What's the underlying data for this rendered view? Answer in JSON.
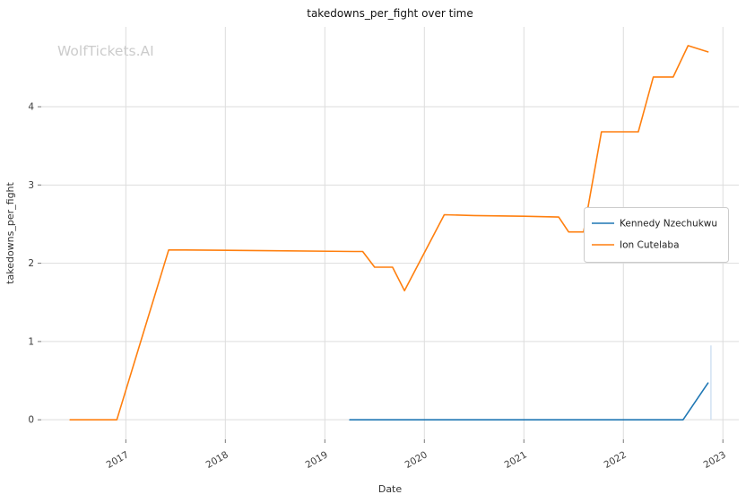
{
  "watermark": "WolfTickets.AI",
  "chart_data": {
    "type": "line",
    "title": "takedowns_per_fight over time",
    "xlabel": "Date",
    "ylabel": "takedowns_per_fight",
    "xlim": [
      2016.15,
      2023.16
    ],
    "ylim": [
      -0.25,
      5.02
    ],
    "x_ticks": [
      2017,
      2018,
      2019,
      2020,
      2021,
      2022,
      2023
    ],
    "y_ticks": [
      0,
      1,
      2,
      3,
      4
    ],
    "grid": true,
    "legend_position": "center-right",
    "colors": {
      "background": "#ffffff",
      "grid": "#dddddd",
      "tick": "#777777",
      "tick_label": "#3d3d3d",
      "title": "#111111",
      "axis_label": "#333333",
      "watermark": "#cccccc",
      "legend_border": "#cccccc",
      "legend_text": "#222222"
    },
    "series": [
      {
        "name": "Kennedy Nzechukwu",
        "color": "#1f77b4",
        "points": [
          [
            2019.25,
            0
          ],
          [
            2022.6,
            0
          ],
          [
            2022.85,
            0.47
          ]
        ]
      },
      {
        "name": "Ion Cutelaba",
        "color": "#ff7f0e",
        "points": [
          [
            2016.44,
            0
          ],
          [
            2016.91,
            0
          ],
          [
            2017.43,
            2.17
          ],
          [
            2017.6,
            2.17
          ],
          [
            2018.4,
            2.16
          ],
          [
            2019.3,
            2.15
          ],
          [
            2019.38,
            2.15
          ],
          [
            2019.5,
            1.95
          ],
          [
            2019.68,
            1.95
          ],
          [
            2019.8,
            1.65
          ],
          [
            2020.2,
            2.62
          ],
          [
            2020.5,
            2.61
          ],
          [
            2021.0,
            2.6
          ],
          [
            2021.35,
            2.59
          ],
          [
            2021.45,
            2.4
          ],
          [
            2021.6,
            2.4
          ],
          [
            2021.78,
            3.68
          ],
          [
            2022.15,
            3.68
          ],
          [
            2022.3,
            4.38
          ],
          [
            2022.5,
            4.38
          ],
          [
            2022.65,
            4.78
          ],
          [
            2022.85,
            4.7
          ]
        ]
      }
    ],
    "annotations": [
      {
        "type": "vline",
        "x": 2022.88,
        "y_from": 0,
        "y_to": 0.95,
        "color": "#c5d9ef"
      }
    ]
  }
}
